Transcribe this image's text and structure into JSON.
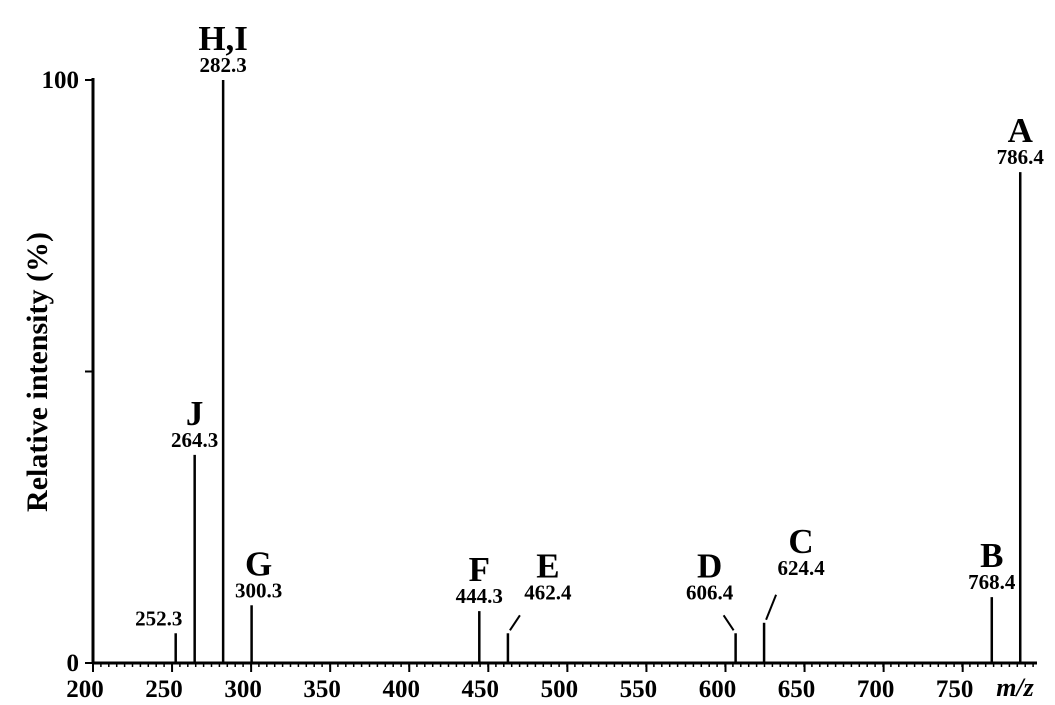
{
  "chart_data": {
    "type": "stem",
    "y_label": "Relative intensity (%)",
    "x_label": "m/z",
    "x": [
      252.3,
      264.3,
      282.3,
      300.3,
      444.3,
      462.4,
      606.4,
      624.4,
      768.4,
      786.4
    ],
    "values": [
      5.1,
      35.7,
      100,
      9.9,
      8.9,
      5.1,
      5.1,
      6.9,
      11.3,
      84.2
    ],
    "peak_labels": [
      null,
      "J",
      "H,I",
      "G",
      "F",
      "E",
      "D",
      "C",
      "B",
      "A"
    ],
    "color": "#000000",
    "xlim": [
      200,
      797
    ],
    "xticks": [
      200,
      250,
      300,
      350,
      400,
      450,
      500,
      550,
      600,
      650,
      700,
      750
    ],
    "ylim": [
      0,
      100
    ],
    "yticks": [
      0,
      100
    ],
    "y_minor_ticks": [
      50
    ]
  }
}
